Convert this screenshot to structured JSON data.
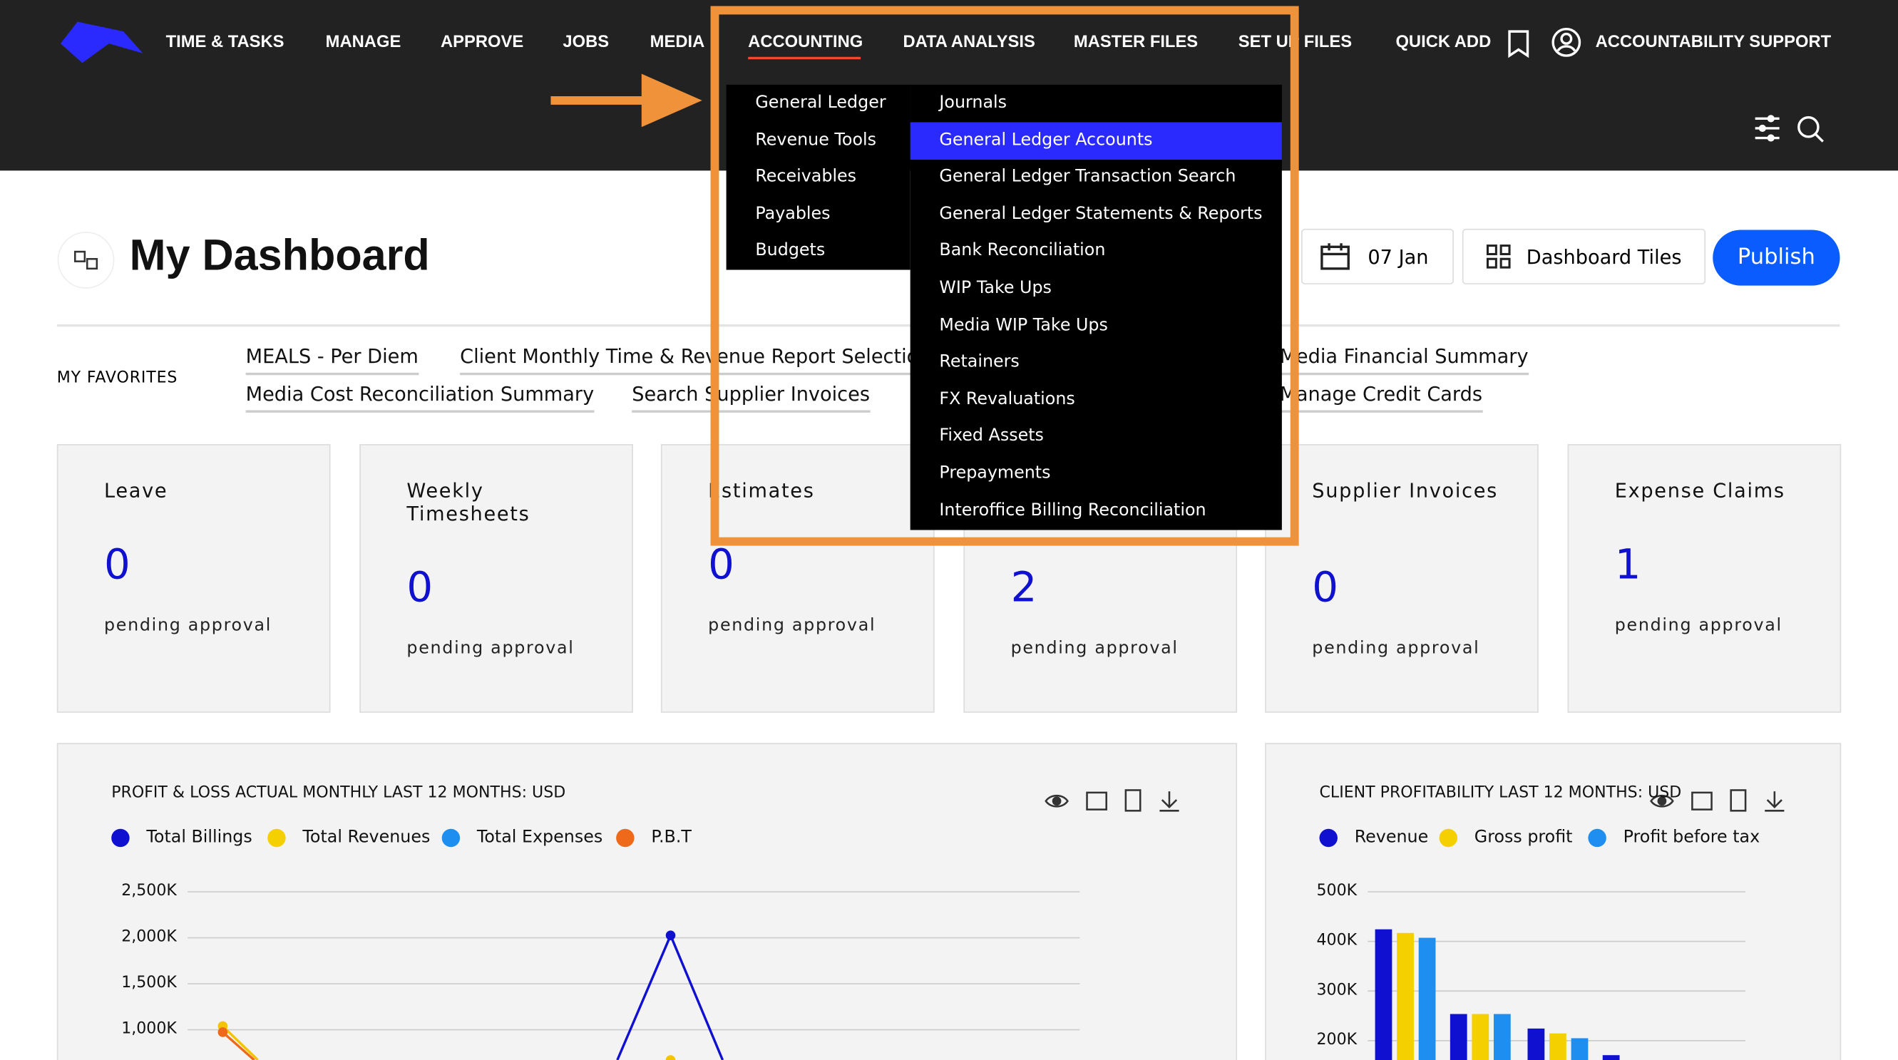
{
  "nav": {
    "items": [
      "TIME & TASKS",
      "MANAGE",
      "APPROVE",
      "JOBS",
      "MEDIA",
      "ACCOUNTING",
      "DATA ANALYSIS",
      "MASTER FILES",
      "SET UP FILES",
      "QUICK ADD"
    ],
    "support": "ACCOUNTABILITY SUPPORT"
  },
  "menu": {
    "left": [
      "General Ledger",
      "Revenue Tools",
      "Receivables",
      "Payables",
      "Budgets"
    ],
    "right": [
      "Journals",
      "General Ledger Accounts",
      "General Ledger Transaction Search",
      "General Ledger Statements & Reports",
      "Bank Reconciliation",
      "WIP Take Ups",
      "Media WIP Take Ups",
      "Retainers",
      "FX Revaluations",
      "Fixed Assets",
      "Prepayments",
      "Interoffice Billing Reconciliation"
    ]
  },
  "dashboard": {
    "title": "My Dashboard",
    "date": "07 Jan",
    "tiles_button": "Dashboard Tiles",
    "publish": "Publish"
  },
  "favorites": {
    "label": "MY FAVORITES",
    "row1": [
      "MEALS - Per Diem",
      "Client Monthly Time & Revenue Report Selection",
      "Media Financial Summary"
    ],
    "row2": [
      "Media Cost Reconciliation Summary",
      "Search Supplier Invoices",
      "Manage Credit Cards"
    ]
  },
  "tiles": [
    {
      "title": "Leave",
      "count": "0",
      "status": "pending approval"
    },
    {
      "title": "Weekly Timesheets",
      "count": "0",
      "status": "pending approval"
    },
    {
      "title": "Estimates",
      "count": "0",
      "status": "pending approval"
    },
    {
      "count": "2",
      "status": "pending approval"
    },
    {
      "title": "Supplier Invoices",
      "count": "0",
      "status": "pending approval"
    },
    {
      "title": "Expense Claims",
      "count": "1",
      "status": "pending approval"
    }
  ],
  "charts": [
    {
      "title": "PROFIT & LOSS ACTUAL MONTHLY LAST 12 MONTHS: USD",
      "legend": [
        {
          "name": "Total Billings",
          "color": "#1010d0"
        },
        {
          "name": "Total Revenues",
          "color": "#f5d000"
        },
        {
          "name": "Total Expenses",
          "color": "#1e8ff0"
        },
        {
          "name": "P.B.T",
          "color": "#ee6a1a"
        }
      ],
      "yticks": [
        "2,500K",
        "2,000K",
        "1,500K",
        "1,000K"
      ]
    },
    {
      "title": "CLIENT PROFITABILITY LAST 12 MONTHS: USD",
      "legend": [
        {
          "name": "Revenue",
          "color": "#1010d0"
        },
        {
          "name": "Gross profit",
          "color": "#f5d000"
        },
        {
          "name": "Profit before tax",
          "color": "#1e8ff0"
        }
      ],
      "yticks": [
        "500K",
        "400K",
        "300K",
        "200K"
      ]
    }
  ]
}
